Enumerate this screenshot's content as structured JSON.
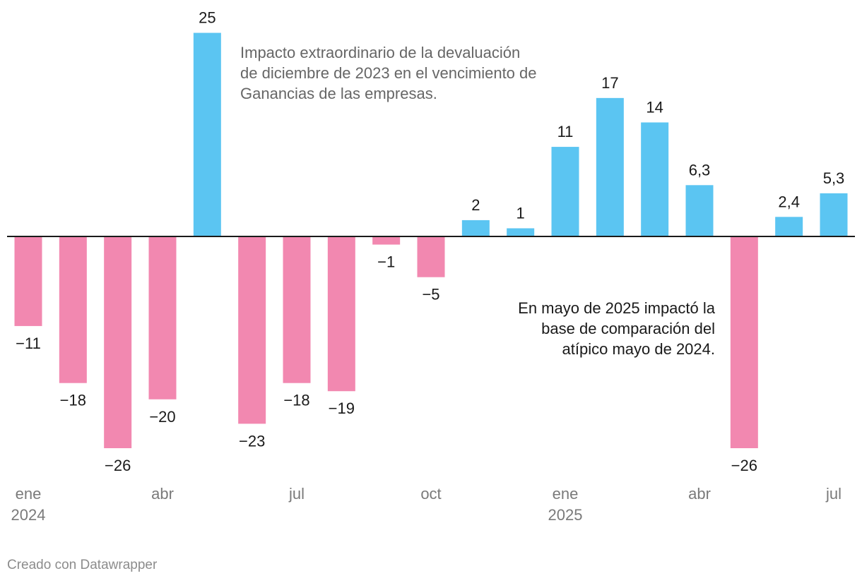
{
  "chart_data": {
    "type": "bar",
    "title": "",
    "xlabel": "",
    "ylabel": "",
    "categories": [
      "ene 2024",
      "feb 2024",
      "mar 2024",
      "abr 2024",
      "may 2024",
      "jun 2024",
      "jul 2024",
      "ago 2024",
      "sep 2024",
      "oct 2024",
      "nov 2024",
      "dic 2024",
      "ene 2025",
      "feb 2025",
      "mar 2025",
      "abr 2025",
      "may 2025",
      "jun 2025",
      "jul 2025"
    ],
    "values": [
      -11,
      -18,
      -26,
      -20,
      25,
      -23,
      -18,
      -19,
      -1,
      -5,
      2,
      1,
      11,
      17,
      14,
      6.3,
      -26,
      2.4,
      5.3
    ],
    "value_labels": [
      "−11",
      "−18",
      "−26",
      "−20",
      "25",
      "−23",
      "−18",
      "−19",
      "−1",
      "−5",
      "2",
      "1",
      "11",
      "17",
      "14",
      "6,3",
      "−26",
      "2,4",
      "5,3"
    ],
    "ylim": [
      -26,
      25
    ],
    "grid": false,
    "colors": {
      "positive": "#5bc5f2",
      "negative": "#f288b0",
      "baseline": "#1a1a1a",
      "label": "#1a1a1a",
      "axis_label": "#7a7a7a"
    },
    "x_ticks": [
      {
        "index": 0,
        "label": "ene",
        "year": "2024"
      },
      {
        "index": 3,
        "label": "abr",
        "year": ""
      },
      {
        "index": 6,
        "label": "jul",
        "year": ""
      },
      {
        "index": 9,
        "label": "oct",
        "year": ""
      },
      {
        "index": 12,
        "label": "ene",
        "year": "2025"
      },
      {
        "index": 15,
        "label": "abr",
        "year": ""
      },
      {
        "index": 18,
        "label": "jul",
        "year": ""
      }
    ]
  },
  "annotations": {
    "devaluation": "Impacto extraordinario de la devaluación de diciembre de 2023 en el vencimiento de Ganancias de las empresas.",
    "may_2025": "En mayo de 2025 impactó la base de comparación del atípico mayo de 2024."
  },
  "credit": "Creado con Datawrapper"
}
